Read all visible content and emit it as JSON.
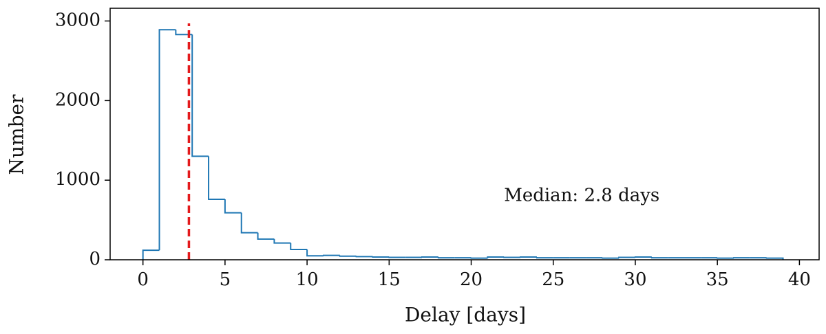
{
  "chart_data": {
    "type": "histogram",
    "xlabel": "Delay [days]",
    "ylabel": "Number",
    "bins": [
      0,
      1,
      2,
      3,
      4,
      5,
      6,
      7,
      8,
      9,
      10,
      11,
      12,
      13,
      14,
      15,
      16,
      17,
      18,
      19,
      20,
      21,
      22,
      23,
      24,
      25,
      26,
      27,
      28,
      29,
      30,
      31,
      32,
      33,
      34,
      35,
      36,
      37,
      38,
      39
    ],
    "counts": [
      120,
      2890,
      2830,
      1300,
      760,
      590,
      340,
      260,
      210,
      130,
      50,
      55,
      45,
      40,
      35,
      30,
      30,
      35,
      25,
      25,
      20,
      35,
      30,
      35,
      25,
      25,
      25,
      25,
      20,
      30,
      35,
      25,
      25,
      25,
      25,
      20,
      25,
      25,
      20
    ],
    "color": "#1f77b4",
    "median": 2.8,
    "median_color": "#e41a1c",
    "annotation": "Median: 2.8 days",
    "annotation_pos": [
      22,
      800
    ],
    "xlim": [
      -2,
      41.2
    ],
    "xticks": [
      0,
      5,
      10,
      15,
      20,
      25,
      30,
      35,
      40
    ],
    "ylim": [
      0,
      3160
    ],
    "yticks": [
      0,
      1000,
      2000,
      3000
    ]
  }
}
